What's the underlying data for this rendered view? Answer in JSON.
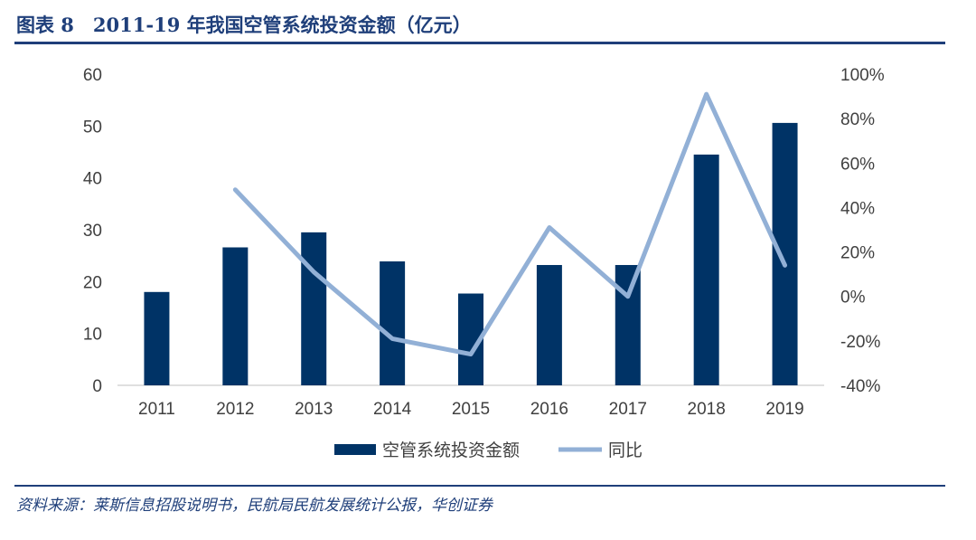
{
  "header": {
    "title": "图表 8　2011-19 年我国空管系统投资金额（亿元）"
  },
  "footer": {
    "source": "资料来源：莱斯信息招股说明书，民航局民航发展统计公报，华创证券"
  },
  "colors": {
    "bar": "#003366",
    "line": "#92b0d6",
    "title": "#1f3f7a"
  },
  "chart_data": {
    "type": "bar",
    "categories": [
      "2011",
      "2012",
      "2013",
      "2014",
      "2015",
      "2016",
      "2017",
      "2018",
      "2019"
    ],
    "series": [
      {
        "name": "空管系统投资金额",
        "type": "bar",
        "axis": "left",
        "values": [
          18.0,
          26.6,
          29.5,
          23.9,
          17.7,
          23.2,
          23.2,
          44.5,
          50.6
        ]
      },
      {
        "name": "同比",
        "type": "line",
        "axis": "right",
        "values": [
          null,
          48,
          11,
          -19,
          -26,
          31,
          0,
          91,
          14
        ]
      }
    ],
    "ylim": [
      0,
      60
    ],
    "yticks": [
      "0",
      "10",
      "20",
      "30",
      "40",
      "50",
      "60"
    ],
    "y2lim": [
      -40,
      100
    ],
    "y2ticks": [
      "-40%",
      "-20%",
      "0%",
      "20%",
      "40%",
      "60%",
      "80%",
      "100%"
    ],
    "grid": false,
    "legend": "bottom"
  }
}
